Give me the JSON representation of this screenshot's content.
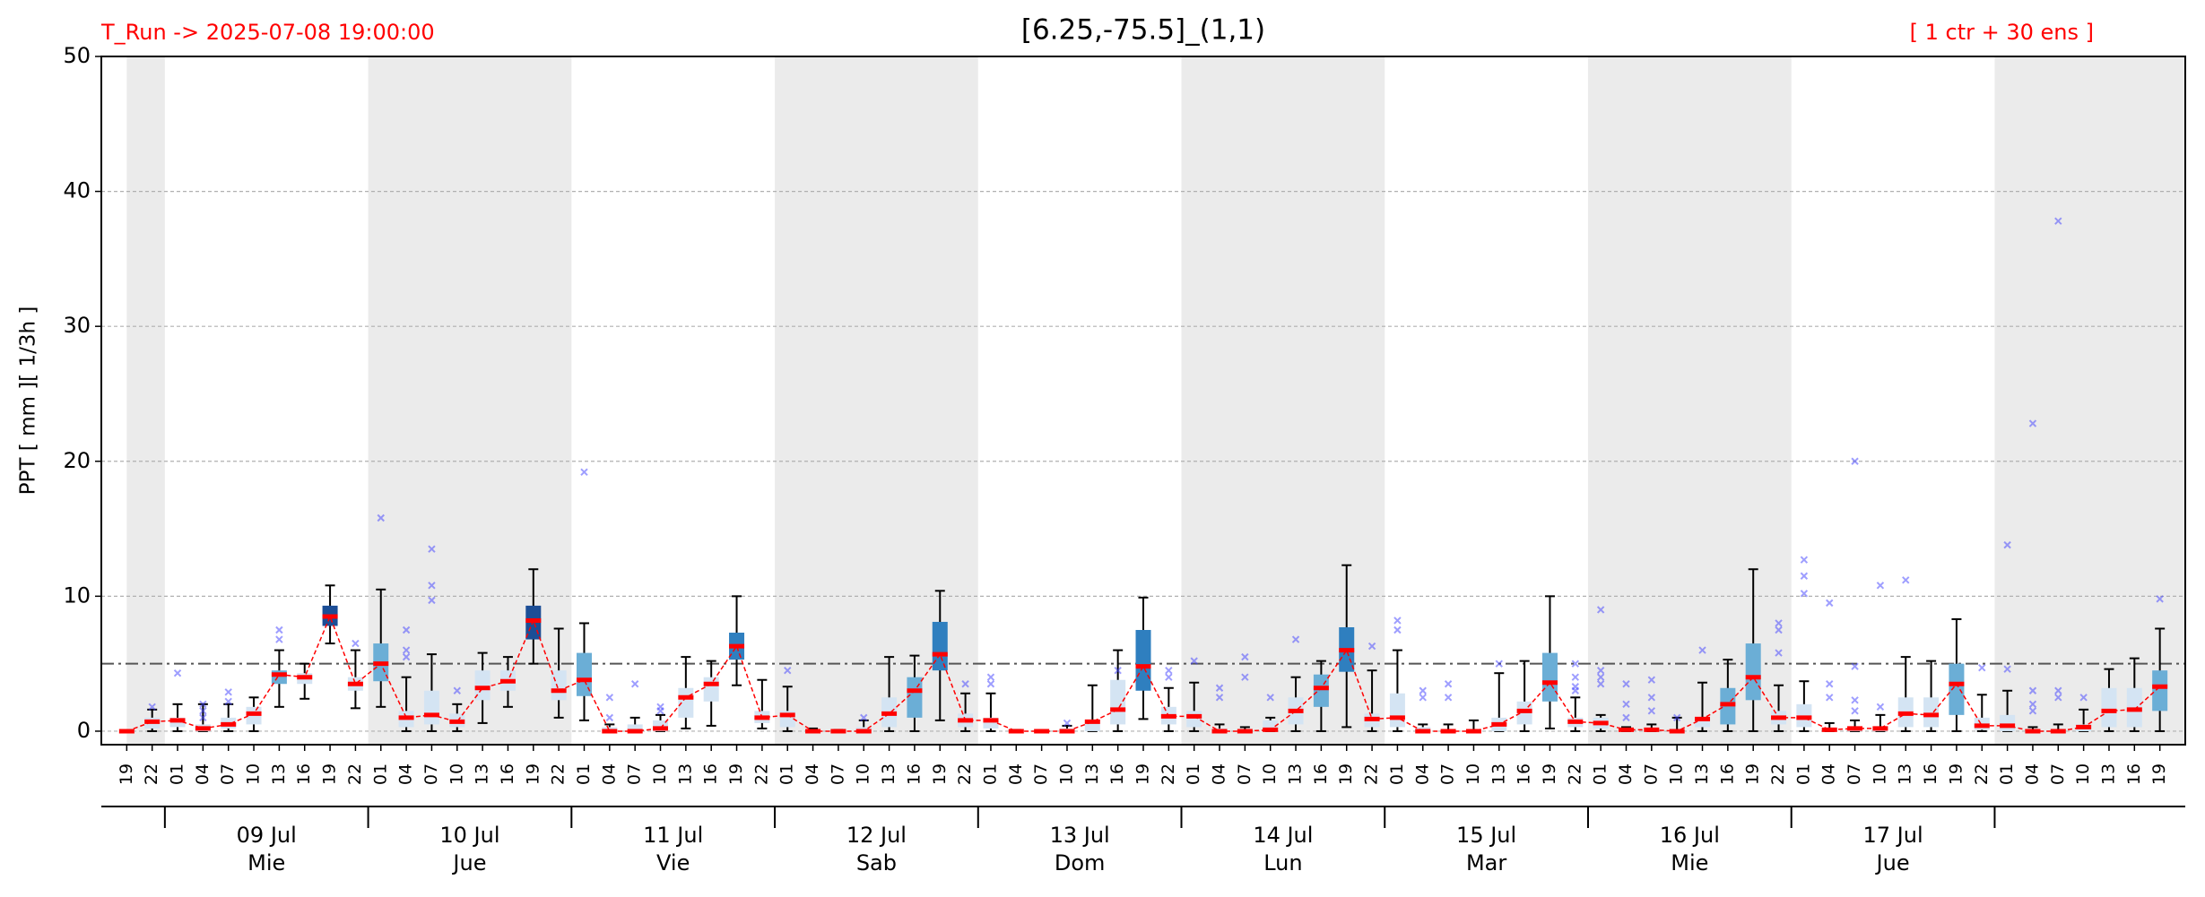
{
  "chart_data": {
    "type": "boxplot",
    "title": "[6.25,-75.5]_(1,1)",
    "run_label": "T_Run -> 2025-07-08  19:00:00",
    "members_label": "[ 1 ctr + 30 ens ]",
    "ylabel": "PPT  [ mm ][ 1/3h ]",
    "ylim": [
      -1,
      50
    ],
    "yticks": [
      0,
      10,
      20,
      30,
      40,
      50
    ],
    "grid": true,
    "threshold": 5,
    "categories": [
      "19",
      "22",
      "01",
      "04",
      "07",
      "10",
      "13",
      "16",
      "19",
      "22",
      "01",
      "04",
      "07",
      "10",
      "13",
      "16",
      "19",
      "22",
      "01",
      "04",
      "07",
      "10",
      "13",
      "16",
      "19",
      "22",
      "01",
      "04",
      "07",
      "10",
      "13",
      "16",
      "19",
      "22",
      "01",
      "04",
      "07",
      "10",
      "13",
      "16",
      "19",
      "22",
      "01",
      "04",
      "07",
      "10",
      "13",
      "16",
      "19",
      "22",
      "01",
      "04",
      "07",
      "10",
      "13",
      "16",
      "19",
      "22",
      "01",
      "04",
      "07",
      "10",
      "13",
      "16",
      "19",
      "22",
      "01",
      "04",
      "07",
      "10",
      "13",
      "16",
      "19",
      "22",
      "01",
      "04",
      "07",
      "10",
      "13",
      "16",
      "19"
    ],
    "days": [
      {
        "date": "09 Jul",
        "weekday": "Mie"
      },
      {
        "date": "10 Jul",
        "weekday": "Jue"
      },
      {
        "date": "11 Jul",
        "weekday": "Vie"
      },
      {
        "date": "12 Jul",
        "weekday": "Sab"
      },
      {
        "date": "13 Jul",
        "weekday": "Dom"
      },
      {
        "date": "14 Jul",
        "weekday": "Lun"
      },
      {
        "date": "15 Jul",
        "weekday": "Mar"
      },
      {
        "date": "16 Jul",
        "weekday": "Mie"
      },
      {
        "date": "17 Jul",
        "weekday": "Jue"
      }
    ],
    "median": [
      0,
      0.7,
      0.8,
      0.2,
      0.5,
      1.3,
      4.2,
      4,
      8.5,
      3.5,
      5,
      1,
      1.2,
      0.7,
      3.2,
      3.7,
      8.2,
      3,
      3.8,
      0,
      0,
      0.2,
      2.5,
      3.5,
      6.3,
      1,
      1.2,
      0,
      0,
      0,
      1.3,
      3,
      5.7,
      0.8,
      0.8,
      0,
      0,
      0,
      0.7,
      1.6,
      4.8,
      1.1,
      1.1,
      0,
      0,
      0.1,
      1.5,
      3.2,
      6,
      0.9,
      1,
      0,
      0,
      0,
      0.5,
      1.5,
      3.6,
      0.7,
      0.6,
      0.1,
      0.1,
      0,
      0.9,
      2,
      4,
      1,
      1,
      0.1,
      0.2,
      0.2,
      1.3,
      1.2,
      3.5,
      0.4,
      0.4,
      0,
      0,
      0.3,
      1.5,
      1.6,
      3.3
    ],
    "q1": [
      0,
      0.2,
      0.3,
      0,
      0.2,
      0.5,
      3.5,
      3.5,
      7.8,
      3,
      3.7,
      0.3,
      0.5,
      0.3,
      2.3,
      3,
      6.8,
      2.3,
      2.6,
      0,
      0,
      0,
      1,
      2.2,
      5.3,
      0.6,
      0.3,
      0,
      0,
      0,
      0.3,
      1,
      4.5,
      0.3,
      0.2,
      0,
      0,
      0,
      0,
      0.5,
      3,
      0.5,
      0.3,
      0,
      0,
      0,
      0.5,
      1.8,
      4.4,
      0.3,
      0.3,
      0,
      0,
      0,
      0,
      0.5,
      2.2,
      0.3,
      0.2,
      0,
      0,
      0,
      0.3,
      0.5,
      2.3,
      0.5,
      0.3,
      0,
      0,
      0,
      0.3,
      0.3,
      1.2,
      0.1,
      0,
      0,
      0,
      0,
      0.3,
      0.3,
      1.5
    ],
    "q3": [
      0,
      1,
      1,
      0.5,
      1,
      1.8,
      4.5,
      4.3,
      9.3,
      4,
      6.5,
      1.5,
      3,
      1.3,
      4.5,
      4.5,
      9.3,
      4.5,
      5.8,
      0.3,
      0.5,
      0.8,
      3.2,
      4,
      7.3,
      1.5,
      1.5,
      0,
      0,
      0.3,
      2.5,
      4,
      8.1,
      1.3,
      1,
      0,
      0,
      0.2,
      0.8,
      3.8,
      7.5,
      1.8,
      1.5,
      0.2,
      0,
      0.8,
      2.5,
      4.2,
      7.7,
      1.3,
      2.8,
      0.3,
      0,
      0,
      1,
      2.2,
      5.8,
      1,
      1,
      0.2,
      0.2,
      0,
      1,
      3.2,
      6.5,
      1.5,
      2,
      0.2,
      0.2,
      0.3,
      2.5,
      2.5,
      5,
      1,
      1.2,
      0,
      0,
      0.5,
      3.2,
      3.2,
      4.5
    ],
    "whislo": [
      0,
      0,
      0,
      0,
      0,
      0,
      1.8,
      2.4,
      6.5,
      1.7,
      1.8,
      0,
      0,
      0,
      0.6,
      1.8,
      5,
      1,
      0.8,
      0,
      0,
      0,
      0.2,
      0.4,
      3.4,
      0.2,
      0,
      0,
      0,
      0,
      0,
      0,
      0.8,
      0,
      0,
      0,
      0,
      0,
      0,
      0,
      0.9,
      0,
      0,
      0,
      0,
      0,
      0,
      0,
      0.3,
      0,
      0,
      0,
      0,
      0,
      0,
      0,
      0.2,
      0,
      0,
      0,
      0,
      0,
      0,
      0,
      0,
      0,
      0,
      0,
      0,
      0,
      0,
      0,
      0,
      0,
      0,
      0,
      0,
      0,
      0,
      0,
      0
    ],
    "whishi": [
      0,
      1.6,
      2,
      2,
      2,
      2.5,
      6,
      5,
      10.8,
      6,
      10.5,
      4,
      5.7,
      2,
      5.8,
      5.5,
      12,
      7.6,
      8,
      0.5,
      1,
      1.2,
      5.5,
      5.2,
      10,
      3.8,
      3.3,
      0.2,
      0.1,
      0.8,
      5.5,
      5.6,
      10.4,
      2.8,
      2.8,
      0.1,
      0,
      0.4,
      3.4,
      6,
      9.9,
      3.2,
      3.6,
      0.5,
      0.3,
      1,
      4,
      5.2,
      12.3,
      4.5,
      6,
      0.5,
      0.5,
      0.8,
      4.3,
      5.2,
      10,
      2.5,
      1.2,
      0.3,
      0.5,
      1,
      3.6,
      5.3,
      12,
      3.4,
      3.7,
      0.6,
      0.8,
      1.2,
      5.5,
      5.2,
      8.3,
      2.7,
      3,
      0.3,
      0.5,
      1.6,
      4.6,
      5.4,
      7.6
    ],
    "fliers": [
      [],
      [
        1.8
      ],
      [
        4.3
      ],
      [
        1,
        1.5,
        2
      ],
      [
        2.2,
        2.9
      ],
      [],
      [
        6.8,
        7.5
      ],
      [],
      [],
      [
        6.5
      ],
      [
        15.8
      ],
      [
        5.5,
        6,
        7.5
      ],
      [
        9.7,
        10.8,
        13.5
      ],
      [
        3
      ],
      [],
      [],
      [],
      [],
      [
        19.2
      ],
      [
        1,
        2.5
      ],
      [
        3.5
      ],
      [
        1.5,
        1.8
      ],
      [],
      [],
      [],
      [],
      [
        4.5
      ],
      [],
      [],
      [
        1
      ],
      [],
      [],
      [],
      [
        3.5
      ],
      [
        3.5,
        4
      ],
      [],
      [],
      [
        0.6
      ],
      [],
      [
        4.5
      ],
      [],
      [
        4,
        4.5
      ],
      [
        5.2
      ],
      [
        2.5,
        3.2
      ],
      [
        4,
        5.5
      ],
      [
        2.5
      ],
      [
        6.8
      ],
      [],
      [],
      [
        6.3
      ],
      [
        7.5,
        8.2
      ],
      [
        2.5,
        3
      ],
      [
        2.5,
        3.5
      ],
      [],
      [
        5
      ],
      [],
      [],
      [
        3,
        3.3,
        4,
        5
      ],
      [
        3.5,
        4,
        4.5,
        9
      ],
      [
        1,
        2,
        3.5
      ],
      [
        1.5,
        2.5,
        3.8
      ],
      [
        1
      ],
      [
        6
      ],
      [],
      [],
      [
        5.8,
        7.5,
        8
      ],
      [
        10.2,
        11.5,
        12.7
      ],
      [
        2.5,
        3.5,
        9.5
      ],
      [
        1.5,
        2.3,
        4.8,
        20
      ],
      [
        1.8,
        10.8
      ],
      [
        11.2
      ],
      [],
      [],
      [
        4.7
      ],
      [
        4.6,
        13.8
      ],
      [
        1.5,
        2,
        3,
        22.8
      ],
      [
        2.5,
        3,
        37.8
      ],
      [
        2.5
      ],
      [],
      [],
      [
        9.8
      ]
    ],
    "box_shade": [
      0,
      0,
      0,
      0,
      0,
      0,
      1,
      0,
      3,
      0,
      1,
      0,
      0,
      0,
      0,
      0,
      3,
      0,
      1,
      0,
      0,
      0,
      0,
      0,
      2,
      0,
      0,
      0,
      0,
      0,
      0,
      1,
      2,
      0,
      0,
      0,
      0,
      0,
      0,
      0,
      2,
      0,
      0,
      0,
      0,
      0,
      0,
      1,
      2,
      0,
      0,
      0,
      0,
      0,
      0,
      0,
      1,
      0,
      0,
      0,
      0,
      0,
      0,
      1,
      1,
      0,
      0,
      0,
      0,
      0,
      0,
      0,
      1,
      0,
      0,
      0,
      0,
      0,
      0,
      0,
      1
    ],
    "palette": [
      "#d4e4f3",
      "#6baed6",
      "#2f7fbf",
      "#1c4e96"
    ],
    "median_color": "#ff0000",
    "flier_color": "#4040ff",
    "shade_color": "#ebebeb"
  }
}
